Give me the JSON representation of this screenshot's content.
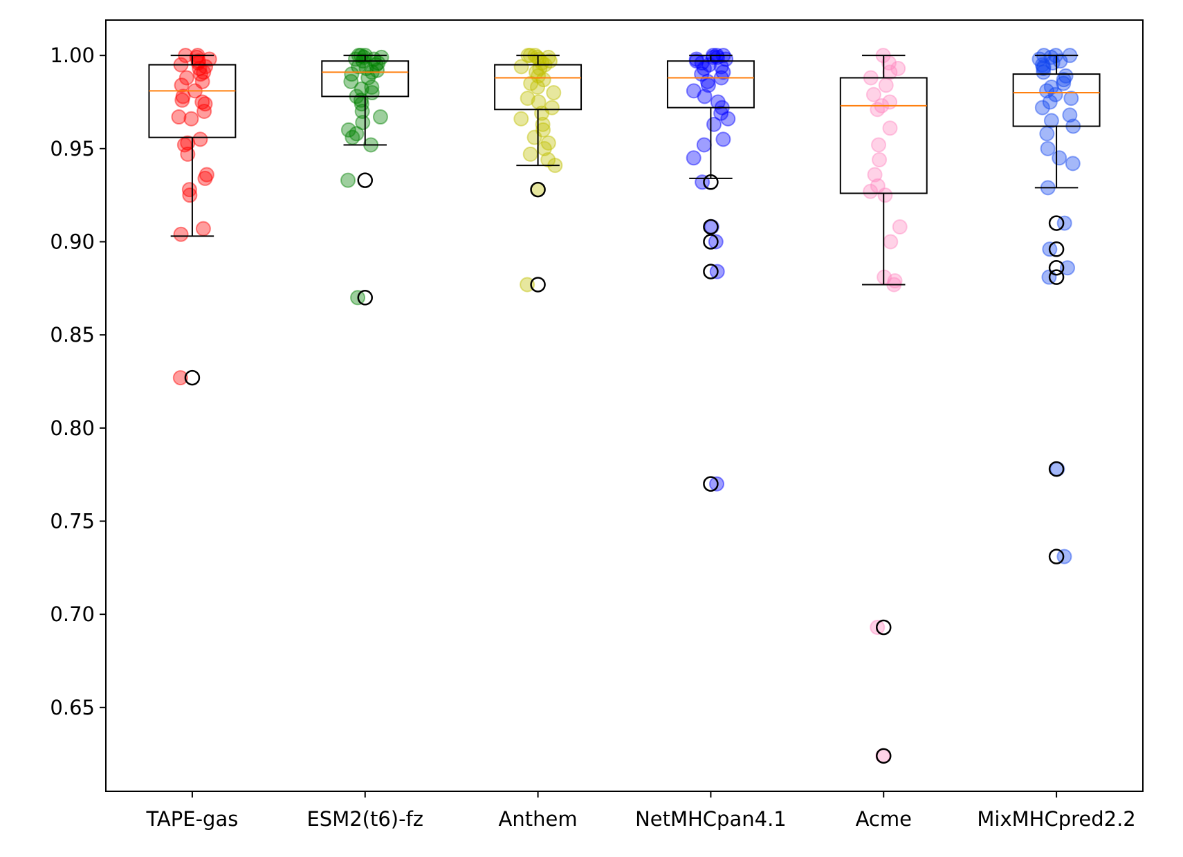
{
  "chart_data": {
    "type": "box",
    "title": "",
    "xlabel": "",
    "ylabel": "",
    "ylim": [
      0.605,
      1.019
    ],
    "yticks": [
      0.65,
      0.7,
      0.75,
      0.8,
      0.85,
      0.9,
      0.95,
      1.0
    ],
    "ytick_labels": [
      "0.65",
      "0.70",
      "0.75",
      "0.80",
      "0.85",
      "0.90",
      "0.95",
      "1.00"
    ],
    "grid": false,
    "legend": "none",
    "median_color": "#ff7f0e",
    "box_color": "#000000",
    "categories": [
      "TAPE-gas",
      "ESM2(t6)-fz",
      "Anthem",
      "NetMHCpan4.1",
      "Acme",
      "MixMHCpred2.2"
    ],
    "series": [
      {
        "color": "#ff0000",
        "whisker_low": 0.903,
        "q1": 0.956,
        "median": 0.981,
        "q3": 0.995,
        "whisker_high": 1.0,
        "outliers": [
          0.827
        ],
        "points": [
          1.0,
          1.0,
          0.999,
          0.998,
          0.997,
          0.996,
          0.995,
          0.994,
          0.993,
          0.991,
          0.99,
          0.988,
          0.986,
          0.984,
          0.981,
          0.978,
          0.976,
          0.975,
          0.974,
          0.97,
          0.967,
          0.966,
          0.955,
          0.953,
          0.952,
          0.947,
          0.936,
          0.934,
          0.928,
          0.925,
          0.907,
          0.904,
          0.827
        ]
      },
      {
        "color": "#008000",
        "whisker_low": 0.952,
        "q1": 0.978,
        "median": 0.991,
        "q3": 0.997,
        "whisker_high": 1.0,
        "outliers": [
          0.933,
          0.87
        ],
        "points": [
          1.0,
          1.0,
          1.0,
          0.999,
          0.999,
          0.998,
          0.998,
          0.997,
          0.996,
          0.995,
          0.994,
          0.993,
          0.992,
          0.991,
          0.99,
          0.988,
          0.986,
          0.983,
          0.982,
          0.98,
          0.978,
          0.976,
          0.974,
          0.97,
          0.967,
          0.964,
          0.96,
          0.958,
          0.956,
          0.952,
          0.933,
          0.87
        ]
      },
      {
        "color": "#bfbf00",
        "whisker_low": 0.941,
        "q1": 0.971,
        "median": 0.988,
        "q3": 0.995,
        "whisker_high": 1.0,
        "outliers": [
          0.928,
          0.877
        ],
        "points": [
          1.0,
          1.0,
          1.0,
          0.999,
          0.999,
          0.998,
          0.997,
          0.996,
          0.995,
          0.994,
          0.993,
          0.991,
          0.989,
          0.987,
          0.985,
          0.983,
          0.98,
          0.977,
          0.975,
          0.972,
          0.969,
          0.966,
          0.963,
          0.96,
          0.956,
          0.953,
          0.95,
          0.947,
          0.944,
          0.941,
          0.928,
          0.877
        ]
      },
      {
        "color": "#0000ff",
        "whisker_low": 0.934,
        "q1": 0.972,
        "median": 0.988,
        "q3": 0.997,
        "whisker_high": 1.0,
        "outliers": [
          0.932,
          0.908,
          0.9,
          0.884,
          0.77
        ],
        "points": [
          1.0,
          1.0,
          1.0,
          0.999,
          0.999,
          0.998,
          0.998,
          0.997,
          0.996,
          0.995,
          0.994,
          0.993,
          0.991,
          0.99,
          0.988,
          0.986,
          0.984,
          0.981,
          0.978,
          0.975,
          0.972,
          0.969,
          0.966,
          0.963,
          0.955,
          0.952,
          0.945,
          0.932,
          0.908,
          0.9,
          0.884,
          0.77
        ]
      },
      {
        "color": "#ff88c0",
        "whisker_low": 0.877,
        "q1": 0.926,
        "median": 0.973,
        "q3": 0.988,
        "whisker_high": 1.0,
        "outliers": [
          0.693,
          0.624
        ],
        "points": [
          1.0,
          0.996,
          0.993,
          0.991,
          0.988,
          0.984,
          0.979,
          0.975,
          0.973,
          0.971,
          0.961,
          0.952,
          0.944,
          0.936,
          0.93,
          0.927,
          0.925,
          0.908,
          0.9,
          0.881,
          0.879,
          0.877,
          0.693,
          0.624
        ]
      },
      {
        "color": "#1144ee",
        "whisker_low": 0.929,
        "q1": 0.962,
        "median": 0.98,
        "q3": 0.99,
        "whisker_high": 1.0,
        "outliers": [
          0.91,
          0.896,
          0.886,
          0.881,
          0.778,
          0.731
        ],
        "points": [
          1.0,
          1.0,
          1.0,
          0.999,
          0.998,
          0.997,
          0.996,
          0.995,
          0.994,
          0.993,
          0.991,
          0.989,
          0.987,
          0.985,
          0.983,
          0.981,
          0.979,
          0.977,
          0.975,
          0.972,
          0.968,
          0.965,
          0.962,
          0.958,
          0.95,
          0.945,
          0.942,
          0.929,
          0.91,
          0.896,
          0.886,
          0.881,
          0.778,
          0.731
        ]
      }
    ]
  }
}
